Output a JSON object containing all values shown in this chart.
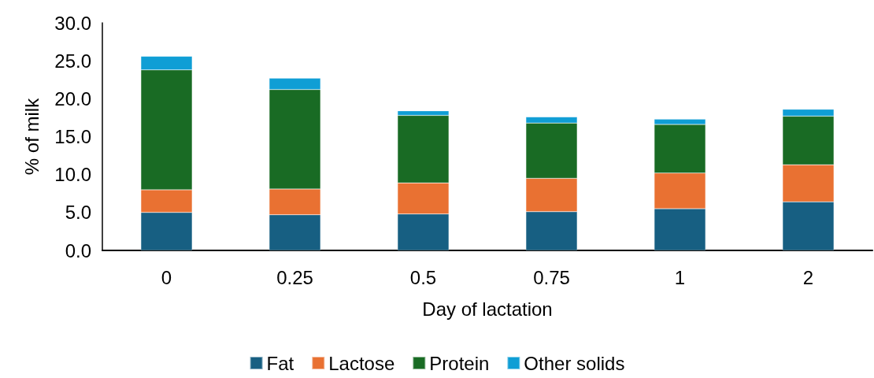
{
  "chart_data": {
    "type": "bar",
    "stacked": true,
    "xlabel": "Day of lactation",
    "ylabel": "% of milk",
    "categories": [
      "0",
      "0.25",
      "0.5",
      "0.75",
      "1",
      "2"
    ],
    "series": [
      {
        "name": "Fat",
        "color": "#175f82",
        "values": [
          5.0,
          4.7,
          4.8,
          5.1,
          5.5,
          6.4
        ]
      },
      {
        "name": "Lactose",
        "color": "#e97132",
        "values": [
          3.0,
          3.4,
          4.1,
          4.4,
          4.7,
          4.9
        ]
      },
      {
        "name": "Protein",
        "color": "#196b24",
        "values": [
          15.8,
          13.1,
          8.9,
          7.3,
          6.4,
          6.4
        ]
      },
      {
        "name": "Other solids",
        "color": "#0f9ed5",
        "values": [
          1.8,
          1.5,
          0.6,
          0.8,
          0.7,
          0.9
        ]
      }
    ],
    "ylim": [
      0,
      30
    ],
    "yticks": [
      {
        "value": 0,
        "label": "0.0"
      },
      {
        "value": 5,
        "label": "5.0"
      },
      {
        "value": 10,
        "label": "10.0"
      },
      {
        "value": 15,
        "label": "15.0"
      },
      {
        "value": 20,
        "label": "20.0"
      },
      {
        "value": 25,
        "label": "25.0"
      },
      {
        "value": 30,
        "label": "30.0"
      }
    ],
    "grid": false,
    "legend": "bottom"
  }
}
